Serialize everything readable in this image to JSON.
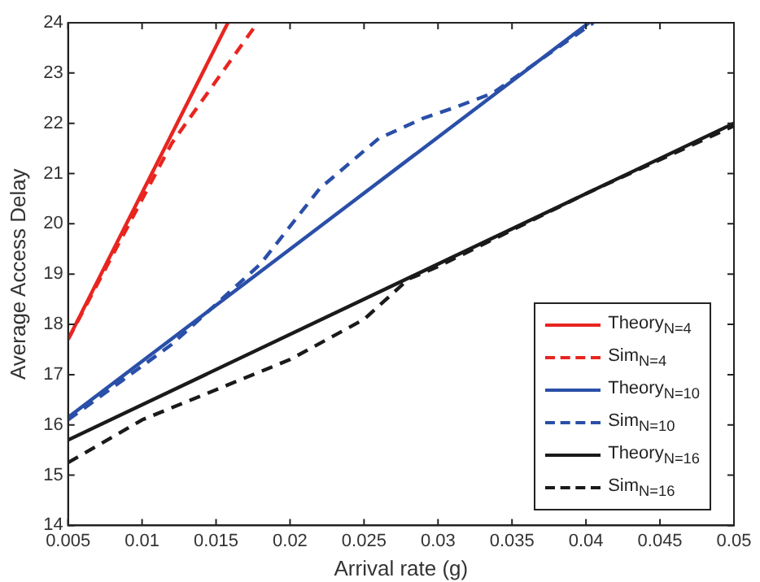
{
  "chart_data": {
    "type": "line",
    "xlabel": "Arrival rate (g)",
    "ylabel": "Average Access Delay",
    "xlim": [
      0.005,
      0.05
    ],
    "xticks": [
      0.005,
      0.01,
      0.015,
      0.02,
      0.025,
      0.03,
      0.035,
      0.04,
      0.045,
      0.05
    ],
    "ylim": [
      14,
      24
    ],
    "yticks": [
      14,
      15,
      16,
      17,
      18,
      19,
      20,
      21,
      22,
      23,
      24
    ],
    "grid": false,
    "legend": "bottom right",
    "marker": "none",
    "series": [
      {
        "name": "Theory$_{N=4}$",
        "color": "#e8251f",
        "line_style": "solid",
        "x": [
          0.005,
          0.0158
        ],
        "values": [
          17.7,
          24
        ]
      },
      {
        "name": "Sim$_{N=4}$",
        "color": "#e8251f",
        "line_style": "dashed",
        "x": [
          0.005,
          0.012,
          0.0178
        ],
        "values": [
          17.7,
          21.6,
          24
        ]
      },
      {
        "name": "Theory$_{N=10}$",
        "color": "#2a4fa8",
        "line_style": "solid",
        "x": [
          0.005,
          0.0402
        ],
        "values": [
          16.15,
          24
        ]
      },
      {
        "name": "Sim$_{N=10}$",
        "color": "#2a4fa8",
        "line_style": "dashed",
        "x": [
          0.005,
          0.012,
          0.018,
          0.022,
          0.026,
          0.029,
          0.031,
          0.0337,
          0.0405
        ],
        "values": [
          16.1,
          17.6,
          19.2,
          20.7,
          21.7,
          22.1,
          22.3,
          22.6,
          24
        ]
      },
      {
        "name": "Theory$_{N=16}$",
        "color": "#1a1a1a",
        "line_style": "solid",
        "x": [
          0.005,
          0.05
        ],
        "values": [
          15.7,
          22
        ]
      },
      {
        "name": "Sim$_{N=16}$",
        "color": "#1a1a1a",
        "line_style": "dashed",
        "x": [
          0.005,
          0.01,
          0.015,
          0.02,
          0.025,
          0.028,
          0.03,
          0.04,
          0.05
        ],
        "values": [
          15.25,
          16.1,
          16.7,
          17.3,
          18.1,
          18.9,
          19.15,
          20.6,
          21.95
        ]
      }
    ]
  }
}
